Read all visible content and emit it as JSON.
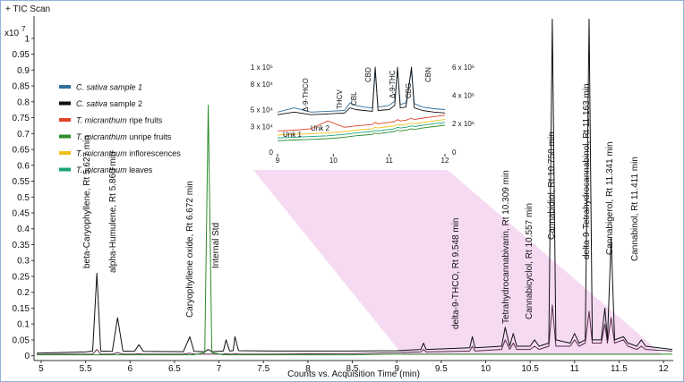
{
  "chart_data": [
    {
      "type": "line",
      "title": "+ TIC Scan",
      "y_multiplier": "x10",
      "y_exponent": "7",
      "xlabel": "Counts vs. Acquisition Time (min)",
      "xlim": [
        4.92,
        12.11
      ],
      "xticks": [
        5,
        5.5,
        6,
        6.5,
        7,
        7.5,
        8,
        8.5,
        9,
        9.5,
        10,
        10.5,
        11,
        11.5,
        12
      ],
      "ylim": [
        -0.015,
        1.07
      ],
      "yticks": [
        0,
        0.05,
        0.1,
        0.15,
        0.2,
        0.25,
        0.3,
        0.35,
        0.4,
        0.45,
        0.5,
        0.55,
        0.6,
        0.65,
        0.7,
        0.75,
        0.8,
        0.85,
        0.9,
        0.95,
        1
      ],
      "x": [
        4.95,
        5.2,
        5.5,
        5.58,
        5.627,
        5.67,
        5.8,
        5.86,
        5.92,
        6.05,
        6.1,
        6.15,
        6.6,
        6.672,
        6.72,
        6.84,
        6.88,
        6.92,
        7.05,
        7.08,
        7.12,
        7.16,
        7.18,
        7.22,
        7.6,
        8.0,
        8.5,
        9.0,
        9.27,
        9.3,
        9.33,
        9.82,
        9.85,
        9.88,
        10.18,
        10.22,
        10.27,
        10.31,
        10.35,
        10.5,
        10.55,
        10.6,
        10.71,
        10.75,
        10.79,
        10.95,
        11.0,
        11.05,
        11.12,
        11.163,
        11.2,
        11.3,
        11.341,
        11.37,
        11.411,
        11.45,
        11.55,
        11.6,
        11.7,
        11.75,
        11.8,
        12.1
      ],
      "series": [
        {
          "color": "#5a2a50",
          "values": [
            0.004,
            0.005,
            0.005,
            0.005,
            0.02,
            0.005,
            0.005,
            0.01,
            0.005,
            0.005,
            0.006,
            0.005,
            0.005,
            0.008,
            0.005,
            0.005,
            0.005,
            0.005,
            0.005,
            0.006,
            0.005,
            0.005,
            0.007,
            0.005,
            0.005,
            0.006,
            0.007,
            0.01,
            0.012,
            0.02,
            0.012,
            0.015,
            0.03,
            0.015,
            0.02,
            0.05,
            0.02,
            0.04,
            0.02,
            0.02,
            0.03,
            0.02,
            0.03,
            0.16,
            0.03,
            0.03,
            0.05,
            0.03,
            0.04,
            0.14,
            0.04,
            0.04,
            0.1,
            0.04,
            0.12,
            0.04,
            0.05,
            0.03,
            0.02,
            0.03,
            0.02,
            0.015
          ]
        },
        {
          "color": "#111111",
          "values": [
            0.008,
            0.01,
            0.012,
            0.015,
            0.26,
            0.015,
            0.014,
            0.12,
            0.015,
            0.014,
            0.035,
            0.014,
            0.013,
            0.06,
            0.014,
            0.013,
            0.02,
            0.013,
            0.015,
            0.05,
            0.015,
            0.016,
            0.06,
            0.016,
            0.015,
            0.015,
            0.015,
            0.016,
            0.02,
            0.04,
            0.02,
            0.025,
            0.06,
            0.025,
            0.03,
            0.09,
            0.03,
            0.07,
            0.03,
            0.03,
            0.05,
            0.03,
            0.04,
            1.06,
            0.05,
            0.04,
            0.07,
            0.04,
            0.05,
            1.06,
            0.05,
            0.05,
            0.15,
            0.05,
            0.37,
            0.05,
            0.06,
            0.04,
            0.03,
            0.05,
            0.03,
            0.02
          ]
        },
        {
          "color": "#2a8a2a",
          "values": [
            0.003,
            0.003,
            0.003,
            0.003,
            0.003,
            0.003,
            0.003,
            0.003,
            0.003,
            0.003,
            0.003,
            0.003,
            0.003,
            0.003,
            0.003,
            0.01,
            0.79,
            0.01,
            0.003,
            0.003,
            0.003,
            0.003,
            0.003,
            0.003,
            0.003,
            0.003,
            0.003,
            0.005,
            0.005,
            0.005,
            0.005,
            0.005,
            0.005,
            0.005,
            0.005,
            0.005,
            0.005,
            0.005,
            0.005,
            0.005,
            0.005,
            0.005,
            0.005,
            0.005,
            0.005,
            0.005,
            0.005,
            0.005,
            0.005,
            0.005,
            0.005,
            0.005,
            0.005,
            0.005,
            0.005,
            0.005,
            0.005,
            0.005,
            0.005,
            0.005,
            0.005,
            0.005
          ]
        }
      ],
      "annotations": [
        {
          "text": "beta-Caryophyllene, Rt 5.627 min",
          "color": "#111111"
        },
        {
          "text": "alpha-Humulene, Rt 5.860 min",
          "color": "#111111"
        },
        {
          "text": "Caryophyllene oxide, Rt 6.672 min",
          "color": "#111111"
        },
        {
          "text": "Internal Std",
          "color": "#2a9a2a"
        },
        {
          "text": "delta-9-THCO, Rt 9.548 min",
          "color": "#111111"
        },
        {
          "text": "Tetrahydrocannabivarin, Rt 10.309 min",
          "color": "#111111"
        },
        {
          "text": "Cannabicyclol, Rt 10.557 min",
          "color": "#111111"
        },
        {
          "text": "Cannabidiol, Rt 10.750 min",
          "color": "#111111"
        },
        {
          "text": "delta-9-Tetrahydrocannabinol, Rt 11.163 min",
          "color": "#111111"
        },
        {
          "text": "Cannabigerol, Rt 11.341 min",
          "color": "#111111"
        },
        {
          "text": "Cannabinol, Rt 11.411 min",
          "color": "#111111"
        }
      ]
    },
    {
      "type": "line",
      "xlim": [
        9,
        12
      ],
      "xticks": [
        9,
        10,
        11,
        12
      ],
      "ylim": [
        0,
        100000
      ],
      "yticks": [
        0,
        {
          "value": 30000,
          "label": "3 x 10⁴"
        },
        {
          "value": 50000,
          "label": "5 x 10⁴"
        },
        {
          "value": 80000,
          "label": "8 x 10⁴"
        },
        {
          "value": 100000,
          "label": "1 x 10⁵"
        }
      ],
      "y2lim": [
        0,
        6000000
      ],
      "y2ticks": [
        0,
        {
          "value": 2000000,
          "label": "2 x 10⁶"
        },
        {
          "value": 4000000,
          "label": "4 x 10⁶"
        },
        {
          "value": 6000000,
          "label": "6 x 10⁶"
        }
      ],
      "x": [
        9,
        9.3,
        9.6,
        9.9,
        10.2,
        10.3,
        10.4,
        10.55,
        10.7,
        10.75,
        10.8,
        11.0,
        11.1,
        11.15,
        11.2,
        11.3,
        11.4,
        11.45,
        11.6,
        11.8,
        12
      ],
      "series": [
        {
          "name": "C. sativa sample 1",
          "color": "#2f6f9a",
          "values": [
            47000,
            52000,
            47000,
            48000,
            49000,
            58000,
            55000,
            53000,
            52000,
            95000,
            53000,
            55000,
            60000,
            98000,
            56000,
            58000,
            96000,
            57000,
            53000,
            51000,
            50000
          ]
        },
        {
          "name": "C. sativa sample 2",
          "color": "#111111",
          "values": [
            44000,
            47000,
            44000,
            45000,
            46000,
            52000,
            50000,
            49000,
            48000,
            100000,
            49000,
            50000,
            55000,
            100000,
            52000,
            53000,
            100000,
            52000,
            49000,
            47000,
            46000
          ]
        },
        {
          "name": "T. micranthum ripe fruits",
          "color": "#e0452b",
          "axis": "y2",
          "values": [
            1500000,
            1550000,
            1650000,
            2200000,
            1750000,
            1800000,
            1850000,
            1900000,
            1950000,
            2100000,
            2000000,
            2100000,
            2150000,
            2300000,
            2200000,
            2250000,
            2400000,
            2300000,
            2400000,
            2500000,
            2600000
          ]
        },
        {
          "name": "T. micranthum unripe fruits",
          "color": "#2e8b2e",
          "axis": "y2",
          "values": [
            800000,
            850000,
            900000,
            950000,
            1050000,
            1100000,
            1150000,
            1200000,
            1250000,
            1350000,
            1300000,
            1400000,
            1450000,
            1550000,
            1500000,
            1550000,
            1650000,
            1600000,
            1700000,
            1800000,
            1900000
          ]
        },
        {
          "name": "T. micranthum inflorescences",
          "color": "#f0c020",
          "axis": "y2",
          "values": [
            1200000,
            1250000,
            1300000,
            1350000,
            1450000,
            1500000,
            1550000,
            1600000,
            1650000,
            1750000,
            1700000,
            1800000,
            1850000,
            1950000,
            1900000,
            1950000,
            2050000,
            2000000,
            2100000,
            2200000,
            2300000
          ]
        },
        {
          "name": "T. micranthum leaves",
          "color": "#1aa37a",
          "axis": "y2",
          "values": [
            1000000,
            1050000,
            1100000,
            1150000,
            1250000,
            1300000,
            1350000,
            1400000,
            1450000,
            1550000,
            1500000,
            1600000,
            1650000,
            1750000,
            1700000,
            1750000,
            1850000,
            1800000,
            1900000,
            2000000,
            2100000
          ]
        }
      ],
      "annotations": [
        "Δ-9-THCO",
        "THCV",
        "CBL",
        "CBD",
        "Δ-9-THC",
        "CBG",
        "CBN",
        "Unk 1",
        "Unk 2"
      ]
    }
  ]
}
